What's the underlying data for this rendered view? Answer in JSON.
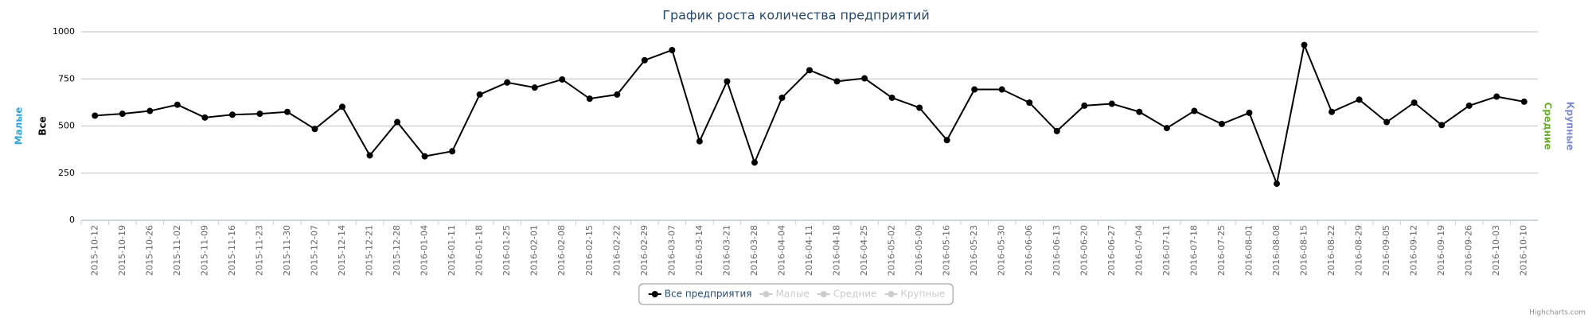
{
  "chart_data": {
    "type": "line",
    "title": "График роста количества предприятий",
    "left_axis_titles": [
      {
        "text": "Малые",
        "color": "#2fa6dd"
      },
      {
        "text": "Все",
        "color": "#000000"
      }
    ],
    "right_axis_titles": [
      {
        "text": "Средние",
        "color": "#6aaf2e"
      },
      {
        "text": "Крупные",
        "color": "#7f8fcf"
      }
    ],
    "categories": [
      "2015-10-12",
      "2015-10-19",
      "2015-10-26",
      "2015-11-02",
      "2015-11-09",
      "2015-11-16",
      "2015-11-23",
      "2015-11-30",
      "2015-12-07",
      "2015-12-14",
      "2015-12-21",
      "2015-12-28",
      "2016-01-04",
      "2016-01-11",
      "2016-01-18",
      "2016-01-25",
      "2016-02-01",
      "2016-02-08",
      "2016-02-15",
      "2016-02-22",
      "2016-02-29",
      "2016-03-07",
      "2016-03-14",
      "2016-03-21",
      "2016-03-28",
      "2016-04-04",
      "2016-04-11",
      "2016-04-18",
      "2016-04-25",
      "2016-05-02",
      "2016-05-09",
      "2016-05-16",
      "2016-05-23",
      "2016-05-30",
      "2016-06-06",
      "2016-06-13",
      "2016-06-20",
      "2016-06-27",
      "2016-07-04",
      "2016-07-11",
      "2016-07-18",
      "2016-07-25",
      "2016-08-01",
      "2016-08-08",
      "2016-08-15",
      "2016-08-22",
      "2016-08-29",
      "2016-09-05",
      "2016-09-12",
      "2016-09-19",
      "2016-09-26",
      "2016-10-03",
      "2016-10-10"
    ],
    "series": [
      {
        "name": "Все предприятия",
        "color": "#000000",
        "visible": true,
        "values": [
          555,
          565,
          580,
          613,
          545,
          560,
          565,
          575,
          484,
          602,
          344,
          521,
          339,
          366,
          667,
          731,
          704,
          747,
          645,
          667,
          849,
          903,
          419,
          737,
          306,
          650,
          796,
          737,
          753,
          650,
          597,
          425,
          694,
          694,
          624,
          473,
          608,
          618,
          575,
          489,
          580,
          511,
          570,
          194,
          930,
          575,
          640,
          521,
          624,
          505,
          608,
          656,
          629
        ]
      },
      {
        "name": "Малые",
        "color": "#cccccc",
        "visible": false
      },
      {
        "name": "Средние",
        "color": "#cccccc",
        "visible": false
      },
      {
        "name": "Крупные",
        "color": "#cccccc",
        "visible": false
      }
    ],
    "ylim": [
      0,
      1000
    ],
    "yticks": [
      0,
      250,
      500,
      750,
      1000
    ],
    "grid": true,
    "credits": "Highcharts.com"
  }
}
